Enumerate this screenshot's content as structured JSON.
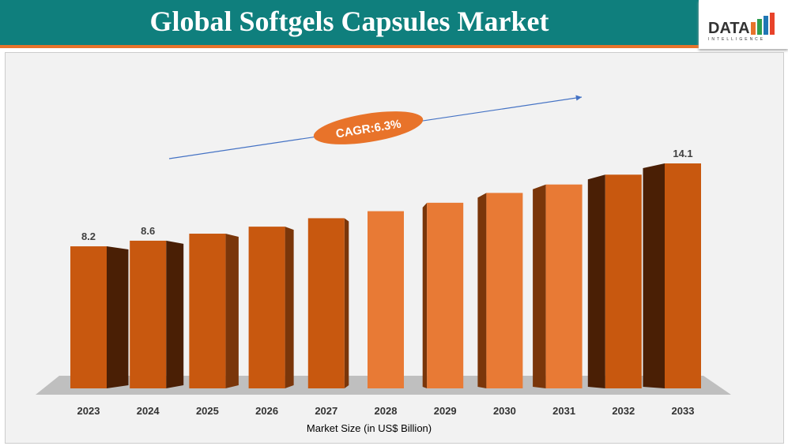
{
  "header": {
    "title": "Global Softgels Capsules Market",
    "logo_text": "DATA",
    "logo_subtext": "INTELLIGENCE"
  },
  "chart_data": {
    "type": "bar",
    "title": "Global Softgels Capsules Market",
    "xlabel": "Market Size (in US$ Billion)",
    "ylabel": "",
    "categories": [
      "2023",
      "2024",
      "2025",
      "2026",
      "2027",
      "2028",
      "2029",
      "2030",
      "2031",
      "2032",
      "2033"
    ],
    "values": [
      8.2,
      8.6,
      9.1,
      9.6,
      10.2,
      10.7,
      11.3,
      12.0,
      12.6,
      13.3,
      14.1
    ],
    "data_labels": {
      "0": "8.2",
      "1": "8.6",
      "10": "14.1"
    },
    "annotation": "CAGR:6.3%",
    "grid": false,
    "colors": {
      "bar": "#c8580f",
      "bar_light": "#e87a35",
      "side": "#7a360a",
      "side_dark": "#4a1f05",
      "floor": "#bfbfbf",
      "header": "#0f7f7d",
      "accent": "#e8732a",
      "arrow": "#4472c4"
    }
  }
}
